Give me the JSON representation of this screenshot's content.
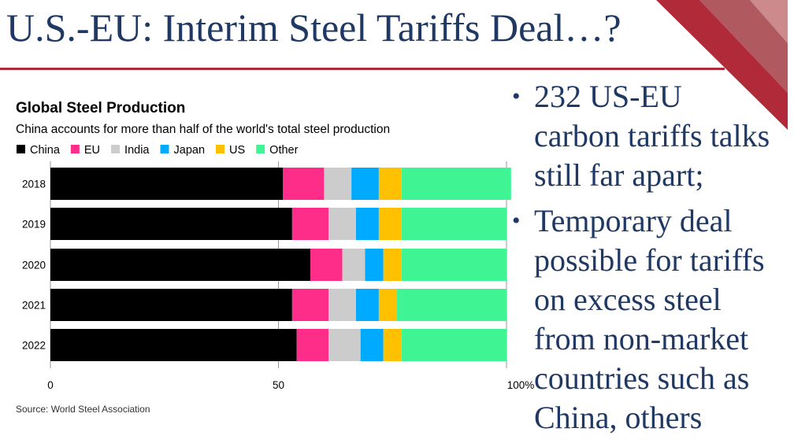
{
  "slide": {
    "title": "U.S.-EU: Interim Steel Tariffs Deal…?",
    "bullets": [
      {
        "lines": [
          "232 US-EU",
          "carbon tariffs talks",
          "still far apart;"
        ]
      },
      {
        "lines": [
          "Temporary deal",
          "possible for tariffs",
          "on excess steel",
          "from non-market",
          "countries such as",
          "China, others"
        ]
      }
    ],
    "bullet_glyph": "•"
  },
  "chart_data": {
    "type": "bar",
    "orientation": "horizontal-stacked",
    "title": "Global Steel Production",
    "subtitle": "China accounts for more than half of the world's total steel production",
    "source": "Source: World Steel Association",
    "categories": [
      "2018",
      "2019",
      "2020",
      "2021",
      "2022"
    ],
    "series": [
      {
        "name": "China",
        "color": "#000000",
        "values": [
          51,
          53,
          57,
          53,
          54
        ]
      },
      {
        "name": "EU",
        "color": "#ff2d8a",
        "values": [
          9,
          8,
          7,
          8,
          7
        ]
      },
      {
        "name": "India",
        "color": "#cccccc",
        "values": [
          6,
          6,
          5,
          6,
          7
        ]
      },
      {
        "name": "Japan",
        "color": "#00aaff",
        "values": [
          6,
          5,
          4,
          5,
          5
        ]
      },
      {
        "name": "US",
        "color": "#ffc000",
        "values": [
          5,
          5,
          4,
          4,
          4
        ]
      },
      {
        "name": "Other",
        "color": "#3ff593",
        "values": [
          24,
          23,
          23,
          24,
          23
        ]
      }
    ],
    "xticks": [
      "0",
      "50",
      "100%"
    ],
    "xtick_values": [
      0,
      50,
      100
    ],
    "xlim": [
      0,
      100
    ],
    "legend_position": "top-left"
  }
}
